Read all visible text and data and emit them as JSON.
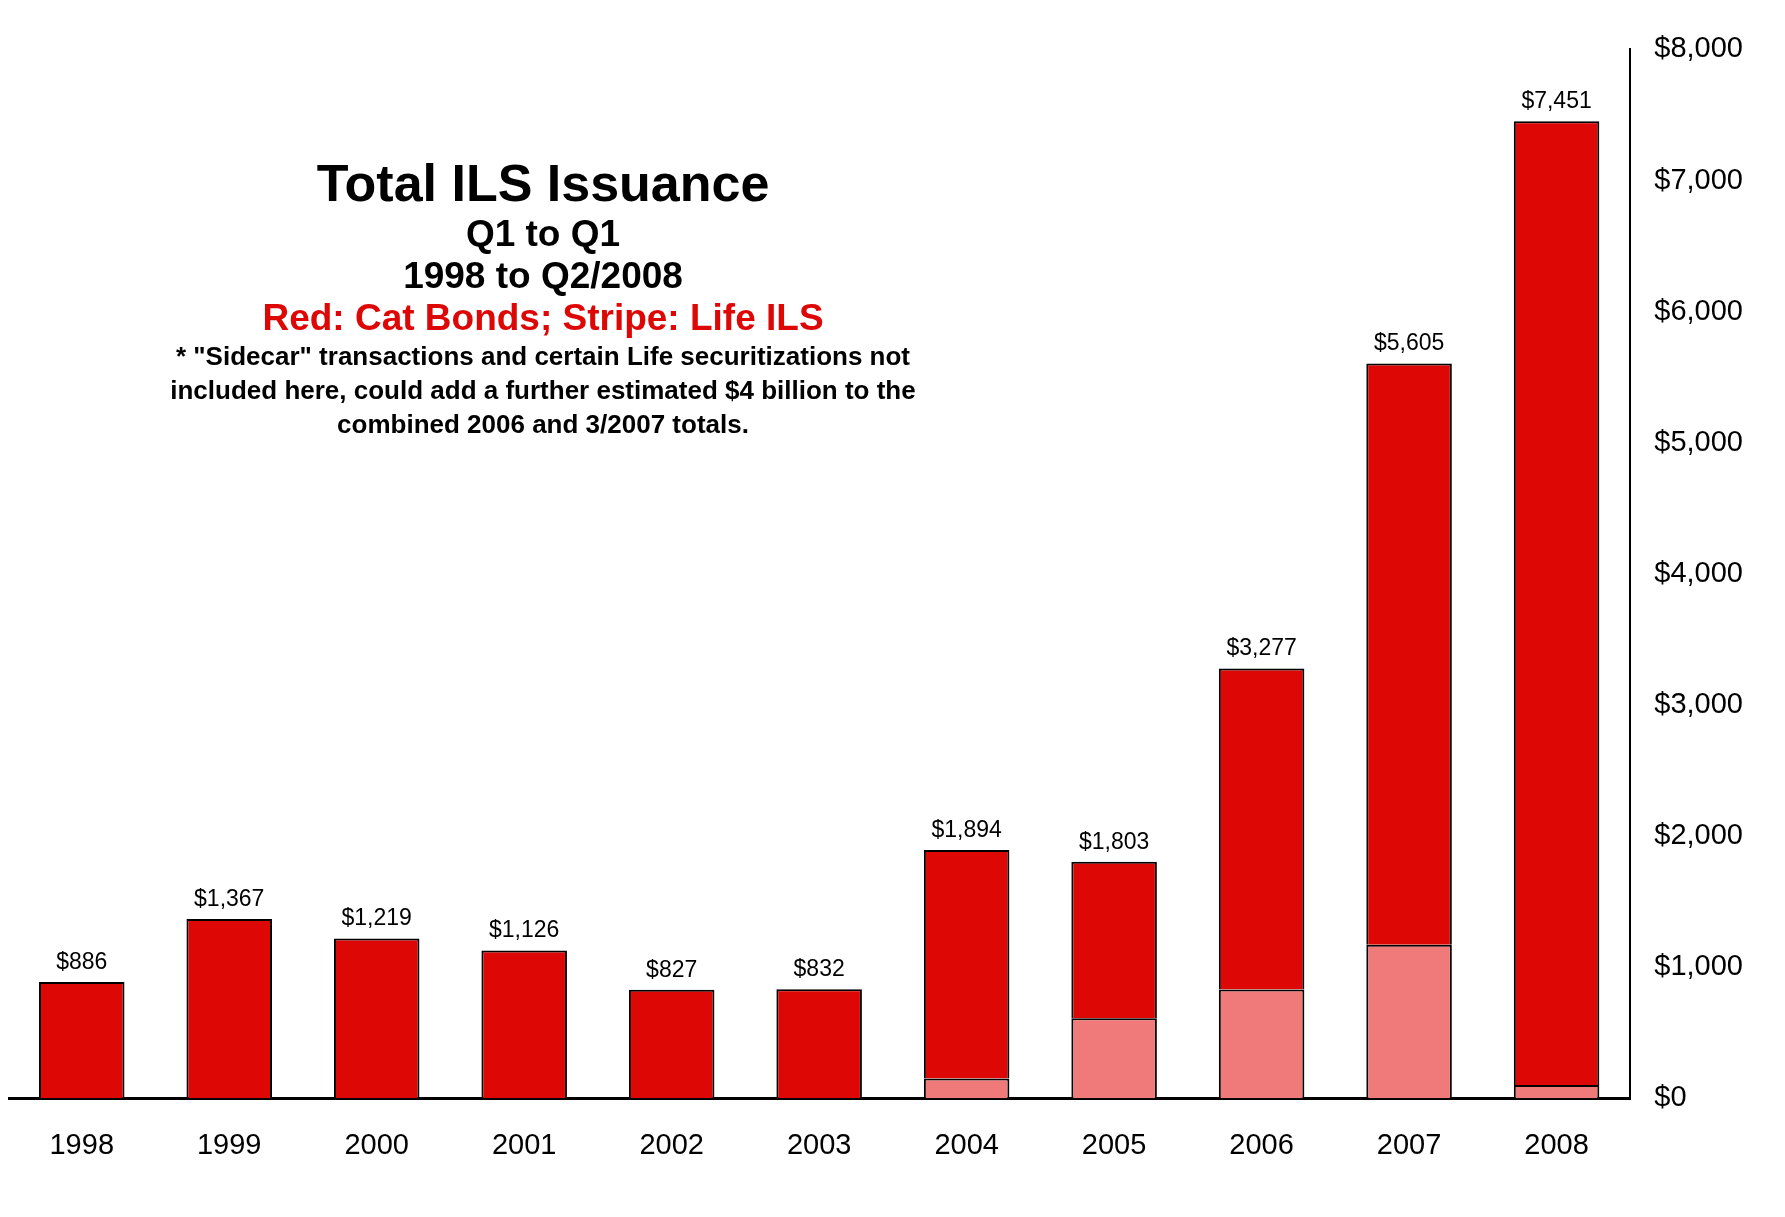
{
  "chart_data": {
    "type": "bar",
    "title": "Total ILS Issuance",
    "subtitle": "Red: Cat Bonds; Stripe: Life ILS",
    "annotations": [
      "Q1 to Q1",
      "1998 to Q2/2008",
      "* \"Sidecar\" transactions and certain Life securitizations not included here, could add a further estimated $4 billion to the combined 2006 and 3/2007 totals."
    ],
    "categories": [
      "1998",
      "1999",
      "2000",
      "2001",
      "2002",
      "2003",
      "2004",
      "2005",
      "2006",
      "2007",
      "2008"
    ],
    "stacked": true,
    "series": [
      {
        "color": "#f07a7a",
        "values": [
          null,
          null,
          null,
          null,
          null,
          null,
          150,
          610,
          830,
          1170,
          100
        ]
      },
      {
        "color": "#dd0806",
        "values": [
          886,
          1367,
          1219,
          1126,
          827,
          832,
          1744,
          1193,
          2447,
          4435,
          7351
        ]
      }
    ],
    "totals": [
      "$886",
      "$1,367",
      "$1,219",
      "$1,126",
      "$827",
      "$832",
      "$1,894",
      "$1,803",
      "$3,277",
      "$5,605",
      "$7,451"
    ],
    "ylim": [
      0,
      8000
    ],
    "yticks": [
      {
        "value": 0,
        "label": "$0"
      },
      {
        "value": 1000,
        "label": "$1,000"
      },
      {
        "value": 2000,
        "label": "$2,000"
      },
      {
        "value": 3000,
        "label": "$3,000"
      },
      {
        "value": 4000,
        "label": "$4,000"
      },
      {
        "value": 5000,
        "label": "$5,000"
      },
      {
        "value": 6000,
        "label": "$6,000"
      },
      {
        "value": 7000,
        "label": "$7,000"
      },
      {
        "value": 8000,
        "label": "$8,000"
      }
    ],
    "grid": false,
    "legend": false
  }
}
